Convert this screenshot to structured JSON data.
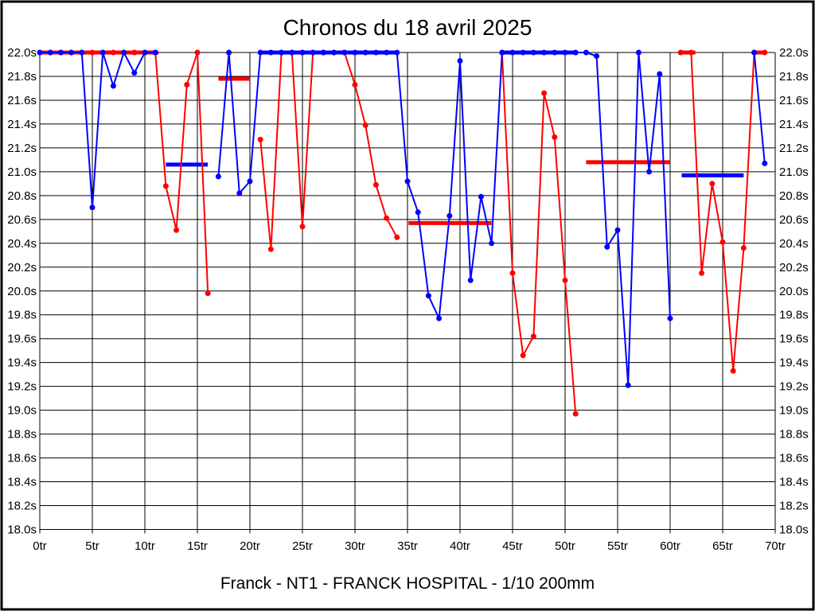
{
  "window": {
    "background": "#ffffff",
    "border_color": "#000000"
  },
  "chart_data": {
    "type": "line",
    "title": "Chronos du 18 avril 2025",
    "footer": "Franck - NT1 - FRANCK HOSPITAL - 1/10 200mm",
    "grid": true,
    "x_axis": {
      "min": 0,
      "max": 70,
      "tick_step": 5,
      "unit": "tr",
      "tick_labels": [
        "0tr",
        "5tr",
        "10tr",
        "15tr",
        "20tr",
        "25tr",
        "30tr",
        "35tr",
        "40tr",
        "45tr",
        "50tr",
        "55tr",
        "60tr",
        "65tr",
        "70tr"
      ]
    },
    "y_axis": {
      "min": 18.0,
      "max": 22.0,
      "tick_step": 0.2,
      "unit": "s",
      "labels_on_both_sides": true,
      "tick_labels": [
        "22.0s",
        "21.8s",
        "21.6s",
        "21.4s",
        "21.2s",
        "21.0s",
        "20.8s",
        "20.6s",
        "20.4s",
        "20.2s",
        "20.0s",
        "19.8s",
        "19.6s",
        "19.4s",
        "19.2s",
        "19.0s",
        "18.8s",
        "18.6s",
        "18.4s",
        "18.2s",
        "18.0s"
      ]
    },
    "series": [
      {
        "name": "red",
        "color": "#ff0000",
        "points_by_lap": [
          22,
          22,
          22,
          22,
          22,
          22,
          22,
          22,
          22,
          22,
          22,
          22,
          20.88,
          20.51,
          21.73,
          22,
          19.98,
          null,
          null,
          null,
          null,
          21.27,
          20.35,
          22,
          22,
          20.54,
          22,
          22,
          22,
          22,
          21.73,
          21.39,
          20.89,
          20.61,
          20.45,
          null,
          null,
          null,
          null,
          null,
          null,
          null,
          null,
          null,
          22,
          20.15,
          19.46,
          19.62,
          21.66,
          21.29,
          20.09,
          18.97,
          null,
          null,
          null,
          null,
          null,
          null,
          null,
          null,
          null,
          22,
          22,
          20.15,
          20.9,
          20.41,
          19.33,
          20.36,
          22,
          22
        ]
      },
      {
        "name": "blue",
        "color": "#0000ff",
        "points_by_lap": [
          22,
          22,
          22,
          22,
          22,
          20.7,
          22,
          21.72,
          22,
          21.83,
          22,
          22,
          null,
          null,
          null,
          null,
          null,
          20.96,
          22,
          20.82,
          20.92,
          22,
          22,
          22,
          22,
          22,
          22,
          22,
          22,
          22,
          22,
          22,
          22,
          22,
          22,
          20.92,
          20.66,
          19.96,
          19.77,
          20.63,
          21.93,
          20.09,
          20.79,
          20.4,
          22,
          22,
          22,
          22,
          22,
          22,
          22,
          22,
          22,
          21.97,
          20.37,
          20.51,
          19.21,
          22,
          21,
          21.82,
          19.77,
          null,
          null,
          null,
          null,
          null,
          null,
          null,
          22,
          21.07
        ]
      }
    ],
    "stint_average_markers": [
      {
        "series": "red",
        "value": 22,
        "from_lap": 0,
        "to_lap": 11.3
      },
      {
        "series": "blue",
        "value": 21.06,
        "from_lap": 12,
        "to_lap": 16
      },
      {
        "series": "red",
        "value": 21.78,
        "from_lap": 17,
        "to_lap": 20
      },
      {
        "series": "blue",
        "value": 22,
        "from_lap": 21.1,
        "to_lap": 34
      },
      {
        "series": "red",
        "value": 20.57,
        "from_lap": 35.1,
        "to_lap": 43
      },
      {
        "series": "blue",
        "value": 22,
        "from_lap": 44.1,
        "to_lap": 51
      },
      {
        "series": "red",
        "value": 21.08,
        "from_lap": 52,
        "to_lap": 60
      },
      {
        "series": "blue",
        "value": 20.97,
        "from_lap": 61.1,
        "to_lap": 67
      },
      {
        "series": "red",
        "value": 22,
        "from_lap": 60.9,
        "to_lap": 62.4
      },
      {
        "series": "red",
        "value": 22,
        "from_lap": 68,
        "to_lap": 69.2
      }
    ]
  }
}
